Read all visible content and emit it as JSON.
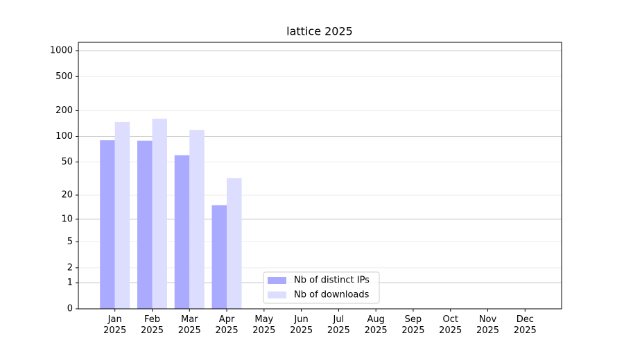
{
  "chart_data": {
    "type": "bar",
    "title": "lattice 2025",
    "categories": [
      "Jan\n2025",
      "Feb\n2025",
      "Mar\n2025",
      "Apr\n2025",
      "May\n2025",
      "Jun\n2025",
      "Jul\n2025",
      "Aug\n2025",
      "Sep\n2025",
      "Oct\n2025",
      "Nov\n2025",
      "Dec\n2025"
    ],
    "series": [
      {
        "name": "Nb of distinct IPs",
        "color": "#aaaaff",
        "values": [
          90,
          89,
          60,
          15,
          null,
          null,
          null,
          null,
          null,
          null,
          null,
          null
        ]
      },
      {
        "name": "Nb of downloads",
        "color": "#ddddff",
        "values": [
          147,
          161,
          119,
          32,
          null,
          null,
          null,
          null,
          null,
          null,
          null,
          null
        ]
      }
    ],
    "yscale": "log1p",
    "ylim": [
      0,
      1250
    ],
    "yticks": [
      0,
      1,
      2,
      5,
      10,
      20,
      50,
      100,
      200,
      500,
      1000
    ],
    "grid": true,
    "legend": "lower center"
  }
}
